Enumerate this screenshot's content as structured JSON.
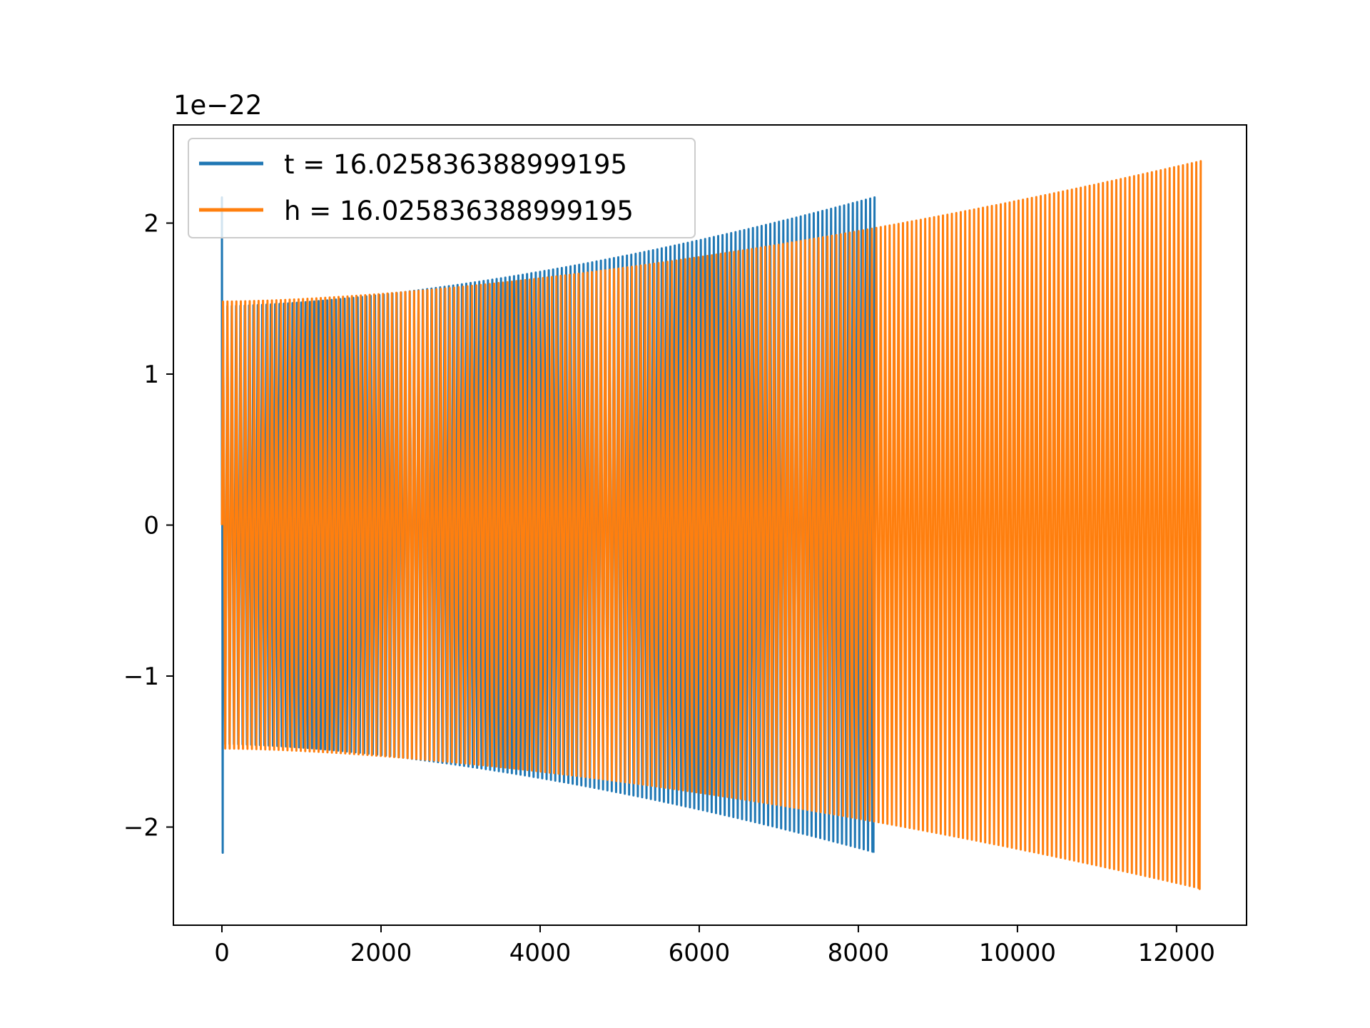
{
  "chart_data": {
    "type": "line",
    "title": "",
    "xlabel": "",
    "ylabel": "",
    "y_offset_label": "1e−22",
    "xlim": [
      -610,
      12880
    ],
    "ylim": [
      -2.65,
      2.65
    ],
    "x_ticks": [
      0,
      2000,
      4000,
      6000,
      8000,
      10000,
      12000
    ],
    "x_tick_labels": [
      "0",
      "2000",
      "4000",
      "6000",
      "8000",
      "10000",
      "12000"
    ],
    "y_ticks": [
      -2,
      -1,
      0,
      1,
      2
    ],
    "y_tick_labels": [
      "−2",
      "−1",
      "0",
      "1",
      "2"
    ],
    "grid": false,
    "legend_position": "top-left",
    "series": [
      {
        "name": "t = 16.025836388999195",
        "color": "#1f77b4",
        "x_start": 0,
        "x_end": 8190,
        "amplitude_start": 1.45,
        "amplitude_end": 2.17,
        "initial_spike": 2.17,
        "cycles": 150
      },
      {
        "name": "h = 16.025836388999195",
        "color": "#ff7f0e",
        "x_start": 0,
        "x_end": 12290,
        "amplitude_start": 1.48,
        "amplitude_end": 2.41,
        "cycles": 220
      }
    ]
  }
}
